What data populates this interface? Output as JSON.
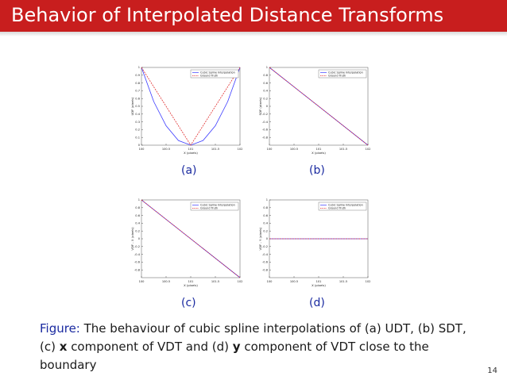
{
  "slide": {
    "title": "Behavior of Interpolated Distance Transforms",
    "caption_label": "Figure:",
    "caption_parts": [
      "The behaviour of cubic spline interpolations of (a) UDT, (b) SDT, (c) ",
      "x",
      " component of VDT and (d) ",
      "y",
      " component of VDT close to the boundary"
    ],
    "page_number": "14",
    "colors": {
      "title_bar": "#c81e1e",
      "caption_label": "#1a2aa0",
      "spline": "#3b3bff",
      "truth": "#e03030"
    }
  },
  "chart_data": [
    {
      "type": "line",
      "panel": "(a)",
      "xlabel": "X (pixels)",
      "ylabel": "UDF (pixels)",
      "xlim": [
        100,
        102
      ],
      "ylim": [
        0,
        1
      ],
      "xticks": [
        "100",
        "100.5",
        "101",
        "101.5",
        "102"
      ],
      "yticks": [
        "0",
        "0.1",
        "0.2",
        "0.3",
        "0.4",
        "0.5",
        "0.6",
        "0.7",
        "0.8",
        "0.9",
        "1"
      ],
      "legend": [
        "Cubic Spline Interpolation",
        "Ground Truth"
      ],
      "legend_placement": "top-right",
      "series": [
        {
          "name": "Cubic Spline Interpolation",
          "style": "solid",
          "x": [
            100,
            100.25,
            100.5,
            100.75,
            101,
            101.25,
            101.5,
            101.75,
            102
          ],
          "y": [
            1.0,
            0.56,
            0.25,
            0.06,
            0.0,
            0.06,
            0.25,
            0.56,
            1.0
          ]
        },
        {
          "name": "Ground Truth",
          "style": "dashed",
          "x": [
            100,
            101,
            102
          ],
          "y": [
            1.0,
            0.0,
            1.0
          ]
        }
      ]
    },
    {
      "type": "line",
      "panel": "(b)",
      "xlabel": "X (pixels)",
      "ylabel": "SDF (pixels)",
      "xlim": [
        100,
        102
      ],
      "ylim": [
        -1,
        1
      ],
      "xticks": [
        "100",
        "100.5",
        "101",
        "101.5",
        "102"
      ],
      "yticks": [
        "-0.8",
        "-0.6",
        "-0.4",
        "-0.2",
        "0",
        "0.2",
        "0.4",
        "0.6",
        "0.8",
        "1"
      ],
      "legend": [
        "Cubic Spline Interpolation",
        "Ground Truth"
      ],
      "legend_placement": "top-right",
      "series": [
        {
          "name": "Cubic Spline Interpolation",
          "style": "solid",
          "x": [
            100,
            102
          ],
          "y": [
            1,
            -1
          ]
        },
        {
          "name": "Ground Truth",
          "style": "dashed",
          "x": [
            100,
            102
          ],
          "y": [
            1,
            -1
          ]
        }
      ]
    },
    {
      "type": "line",
      "panel": "(c)",
      "xlabel": "X (pixels)",
      "ylabel": "VDF - X (pixels)",
      "xlim": [
        100,
        102
      ],
      "ylim": [
        -1,
        1
      ],
      "xticks": [
        "100",
        "100.5",
        "101",
        "101.5",
        "102"
      ],
      "yticks": [
        "-0.8",
        "-0.6",
        "-0.4",
        "-0.2",
        "0",
        "0.2",
        "0.4",
        "0.6",
        "0.8",
        "1"
      ],
      "legend": [
        "Cubic Spline Interpolation",
        "Ground Truth"
      ],
      "legend_placement": "top-right",
      "series": [
        {
          "name": "Cubic Spline Interpolation",
          "style": "solid",
          "x": [
            100,
            102
          ],
          "y": [
            1,
            -1
          ]
        },
        {
          "name": "Ground Truth",
          "style": "dashed",
          "x": [
            100,
            102
          ],
          "y": [
            1,
            -1
          ]
        }
      ]
    },
    {
      "type": "line",
      "panel": "(d)",
      "xlabel": "X (pixels)",
      "ylabel": "VDF - Y (pixels)",
      "xlim": [
        100,
        102
      ],
      "ylim": [
        -1,
        1
      ],
      "xticks": [
        "100",
        "100.5",
        "101",
        "101.5",
        "102"
      ],
      "yticks": [
        "-0.8",
        "-0.6",
        "-0.4",
        "-0.2",
        "0",
        "0.2",
        "0.4",
        "0.6",
        "0.8",
        "1"
      ],
      "legend": [
        "Cubic Spline Interpolation",
        "Ground Truth"
      ],
      "legend_placement": "top-right",
      "series": [
        {
          "name": "Cubic Spline Interpolation",
          "style": "solid",
          "x": [
            100,
            102
          ],
          "y": [
            0,
            0
          ]
        },
        {
          "name": "Ground Truth",
          "style": "dashed",
          "x": [
            100,
            102
          ],
          "y": [
            0,
            0
          ]
        }
      ]
    }
  ]
}
